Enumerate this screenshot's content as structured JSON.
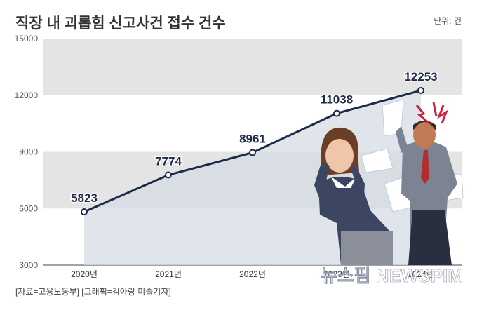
{
  "title": "직장 내 괴롭힘 신고사건 접수 건수",
  "unit": "단위: 건",
  "source": "[자료=고용노동부] [그래픽=김아랑 미술기자]",
  "watermark": "뉴스핌 NEWSPIM",
  "colors": {
    "line": "#1f2a4a",
    "band": "#e4e4e4",
    "area": "#d6dce6",
    "text": "#333333"
  },
  "chart_data": {
    "type": "line",
    "categories": [
      "2020년",
      "2021년",
      "2022년",
      "2023년",
      "2024년"
    ],
    "values": [
      5823,
      7774,
      8961,
      11038,
      12253
    ],
    "value_labels": [
      "5823",
      "7774",
      "8961",
      "11038",
      "12253"
    ],
    "ylim": [
      3000,
      15000
    ],
    "yticks": [
      "3000",
      "6000",
      "9000",
      "12000",
      "15000"
    ],
    "grid": "alternating horizontal bands"
  }
}
